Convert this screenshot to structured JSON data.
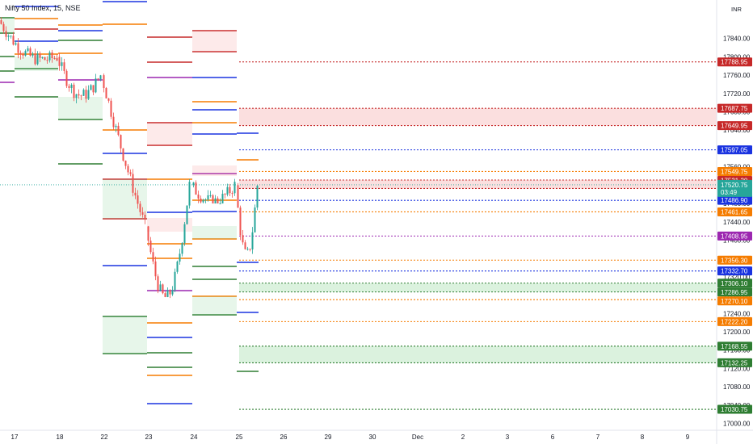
{
  "header": {
    "title": "Nifty 50 Index, 15, NSE",
    "currency": "INR"
  },
  "price_axis": {
    "labels": [
      "17840.00",
      "17800.00",
      "17760.00",
      "17720.00",
      "17680.00",
      "17640.00",
      "17600.00",
      "17560.00",
      "17520.00",
      "17480.00",
      "17440.00",
      "17400.00",
      "17360.00",
      "17320.00",
      "17280.00",
      "17240.00",
      "17200.00",
      "17160.00",
      "17120.00",
      "17080.00",
      "17040.00",
      "17000.00"
    ]
  },
  "time_axis": {
    "labels": [
      "17",
      "18",
      "22",
      "23",
      "24",
      "25",
      "26",
      "29",
      "30",
      "Dec",
      "2",
      "3",
      "6",
      "7",
      "8",
      "9"
    ]
  },
  "current": {
    "price": "17520.75",
    "countdown": "03:49"
  },
  "price_tags": [
    {
      "value": "17788.95",
      "color": "#c62828"
    },
    {
      "value": "17687.75",
      "color": "#c62828"
    },
    {
      "value": "17649.95",
      "color": "#c62828"
    },
    {
      "value": "17597.05",
      "color": "#1a33e0"
    },
    {
      "value": "17549.75",
      "color": "#f57c00"
    },
    {
      "value": "17531.20",
      "color": "#c62828"
    },
    {
      "value": "17512.80",
      "color": "#c62828"
    },
    {
      "value": "17486.90",
      "color": "#1a33e0"
    },
    {
      "value": "17461.65",
      "color": "#f57c00"
    },
    {
      "value": "17408.95",
      "color": "#9c27b0"
    },
    {
      "value": "17356.30",
      "color": "#f57c00"
    },
    {
      "value": "17332.70",
      "color": "#1a33e0"
    },
    {
      "value": "17306.10",
      "color": "#2e7d32"
    },
    {
      "value": "17286.95",
      "color": "#2e7d32"
    },
    {
      "value": "17270.10",
      "color": "#f57c00"
    },
    {
      "value": "17222.20",
      "color": "#f57c00"
    },
    {
      "value": "17168.55",
      "color": "#2e7d32"
    },
    {
      "value": "17132.25",
      "color": "#2e7d32"
    },
    {
      "value": "17030.75",
      "color": "#2e7d32"
    }
  ],
  "chart_data": {
    "type": "candlestick",
    "title": "Nifty 50 Index, 15, NSE",
    "ylim": [
      16985,
      17910
    ],
    "current_price": 17520.75,
    "sessions": [
      {
        "date": "17",
        "open": 17880,
        "high": 17905,
        "low": 17760,
        "close": 17800
      },
      {
        "date": "18",
        "open": 17800,
        "high": 17830,
        "low": 17690,
        "close": 17760
      },
      {
        "date": "22",
        "open": 17760,
        "high": 17770,
        "low": 17420,
        "close": 17430
      },
      {
        "date": "23",
        "open": 17430,
        "high": 17560,
        "low": 17210,
        "close": 17520
      },
      {
        "date": "24",
        "open": 17520,
        "high": 17580,
        "low": 17480,
        "close": 17520
      },
      {
        "date": "25",
        "open": 17520,
        "high": 17545,
        "low": 17350,
        "close": 17520
      }
    ],
    "levels": [
      {
        "price": 17788.95,
        "color": "#c62828"
      },
      {
        "price": 17687.75,
        "color": "#c62828"
      },
      {
        "price": 17649.95,
        "color": "#c62828"
      },
      {
        "price": 17597.05,
        "color": "#1a33e0"
      },
      {
        "price": 17549.75,
        "color": "#f57c00"
      },
      {
        "price": 17531.2,
        "color": "#c62828"
      },
      {
        "price": 17512.8,
        "color": "#c62828"
      },
      {
        "price": 17486.9,
        "color": "#1a33e0"
      },
      {
        "price": 17461.65,
        "color": "#f57c00"
      },
      {
        "price": 17408.95,
        "color": "#9c27b0"
      },
      {
        "price": 17356.3,
        "color": "#f57c00"
      },
      {
        "price": 17332.7,
        "color": "#1a33e0"
      },
      {
        "price": 17306.1,
        "color": "#2e7d32"
      },
      {
        "price": 17286.95,
        "color": "#2e7d32"
      },
      {
        "price": 17270.1,
        "color": "#f57c00"
      },
      {
        "price": 17222.2,
        "color": "#f57c00"
      },
      {
        "price": 17168.55,
        "color": "#2e7d32"
      },
      {
        "price": 17132.25,
        "color": "#2e7d32"
      },
      {
        "price": 17030.75,
        "color": "#2e7d32"
      }
    ],
    "zones": [
      {
        "top": 17687.75,
        "bottom": 17649.95,
        "color": "#f28b8b"
      },
      {
        "top": 17531.2,
        "bottom": 17512.8,
        "color": "#f28b8b"
      },
      {
        "top": 17306.1,
        "bottom": 17286.95,
        "color": "#7ccf8a"
      },
      {
        "top": 17168.55,
        "bottom": 17132.25,
        "color": "#7ccf8a"
      }
    ]
  }
}
